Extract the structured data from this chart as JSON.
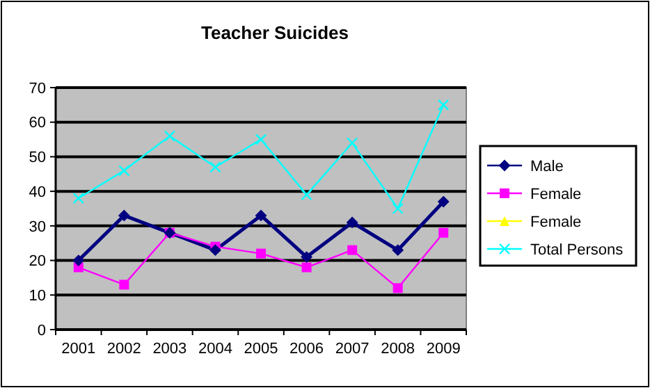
{
  "chart_data": {
    "type": "line",
    "title": "Teacher Suicides",
    "categories": [
      "2001",
      "2002",
      "2003",
      "2004",
      "2005",
      "2006",
      "2007",
      "2008",
      "2009"
    ],
    "series": [
      {
        "name": "Male",
        "color": "#000080",
        "marker": "diamond",
        "values": [
          20,
          33,
          28,
          23,
          33,
          21,
          31,
          23,
          37
        ]
      },
      {
        "name": "Female",
        "color": "#ff00ff",
        "marker": "square",
        "values": [
          18,
          13,
          28,
          24,
          22,
          18,
          23,
          12,
          28
        ]
      },
      {
        "name": "Female",
        "color": "#ffff00",
        "marker": "triangle",
        "values": [
          null,
          null,
          null,
          null,
          null,
          null,
          null,
          null,
          null
        ]
      },
      {
        "name": "Total Persons",
        "color": "#00ffff",
        "marker": "cross",
        "values": [
          38,
          46,
          56,
          47,
          55,
          39,
          54,
          35,
          65
        ]
      }
    ],
    "ylim": [
      0,
      70
    ],
    "yticks": [
      0,
      10,
      20,
      30,
      40,
      50,
      60,
      70
    ],
    "grid": "y",
    "legend": "right"
  }
}
